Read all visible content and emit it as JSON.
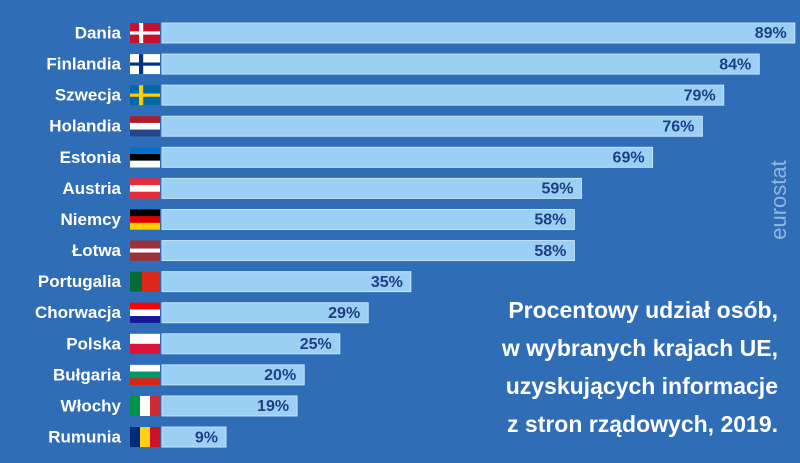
{
  "chart_data": {
    "type": "bar",
    "orientation": "horizontal",
    "title": [
      "Procentowy udział osób,",
      "w wybranych krajach UE,",
      "uzyskujących informacje",
      "z stron rządowych, 2019."
    ],
    "source": "eurostat",
    "categories": [
      "Dania",
      "Finlandia",
      "Szwecja",
      "Holandia",
      "Estonia",
      "Austria",
      "Niemcy",
      "Łotwa",
      "Portugalia",
      "Chorwacja",
      "Polska",
      "Bułgaria",
      "Włochy",
      "Rumunia"
    ],
    "values": [
      89,
      84,
      79,
      76,
      69,
      59,
      58,
      58,
      35,
      29,
      25,
      20,
      19,
      9
    ],
    "value_labels": [
      "89%",
      "84%",
      "79%",
      "76%",
      "69%",
      "59%",
      "58%",
      "58%",
      "35%",
      "29%",
      "25%",
      "20%",
      "19%",
      "9%"
    ],
    "color": "#9ccff4"
  }
}
